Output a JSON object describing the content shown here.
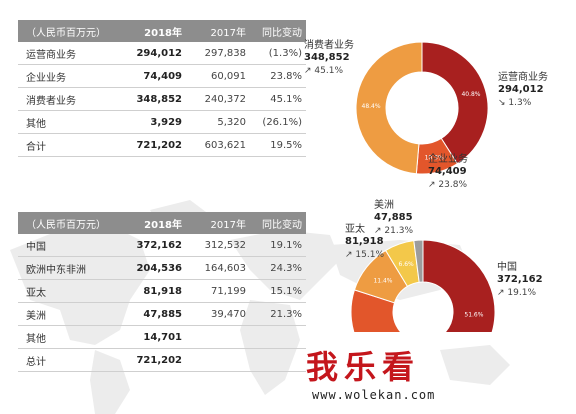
{
  "chart_data": [
    {
      "type": "table",
      "header": [
        "（人民币百万元）",
        "2018年",
        "2017年",
        "同比变动"
      ],
      "rows": [
        [
          "运营商业务",
          "294,012",
          "297,838",
          "(1.3%)"
        ],
        [
          "企业业务",
          "74,409",
          "60,091",
          "23.8%"
        ],
        [
          "消费者业务",
          "348,852",
          "240,372",
          "45.1%"
        ],
        [
          "其他",
          "3,929",
          "5,320",
          "(26.1%)"
        ],
        [
          "合计",
          "721,202",
          "603,621",
          "19.5%"
        ]
      ]
    },
    {
      "type": "pie",
      "labels": [
        "运营商业务",
        "企业业务",
        "消费者业务"
      ],
      "values": [
        294012,
        74409,
        348852
      ],
      "percent_labels": [
        "40.8%",
        "10.3%",
        "48.4%"
      ],
      "value_labels": [
        "294,012",
        "74,409",
        "348,852"
      ],
      "change_labels": [
        "↘ 1.3%",
        "↗ 23.8%",
        "↗ 45.1%"
      ],
      "colors": [
        "#a8201f",
        "#e2562b",
        "#ee9c42"
      ]
    },
    {
      "type": "table",
      "header": [
        "（人民币百万元）",
        "2018年",
        "2017年",
        "同比变动"
      ],
      "rows": [
        [
          "中国",
          "372,162",
          "312,532",
          "19.1%"
        ],
        [
          "欧洲中东非洲",
          "204,536",
          "164,603",
          "24.3%"
        ],
        [
          "亚太",
          "81,918",
          "71,199",
          "15.1%"
        ],
        [
          "美洲",
          "47,885",
          "39,470",
          "21.3%"
        ],
        [
          "其他",
          "14,701",
          "",
          ""
        ],
        [
          "总计",
          "721,202",
          "",
          ""
        ]
      ]
    },
    {
      "type": "pie",
      "labels": [
        "中国",
        "欧洲中东非洲",
        "亚太",
        "美洲",
        "其他"
      ],
      "values": [
        372162,
        204536,
        81918,
        47885,
        14701
      ],
      "percent_labels": [
        "51.6%",
        "",
        "11.4%",
        "6.6%",
        ""
      ],
      "value_labels": [
        "372,162",
        "",
        "81,918",
        "47,885",
        ""
      ],
      "change_labels": [
        "↗ 19.1%",
        "",
        "↗ 15.1%",
        "↗ 21.3%",
        ""
      ],
      "colors": [
        "#a8201f",
        "#e2562b",
        "#ee9c42",
        "#f3c84a",
        "#9c9c9c"
      ]
    }
  ],
  "watermark": {
    "cn": "我乐看",
    "url": "www.wolekan.com"
  }
}
